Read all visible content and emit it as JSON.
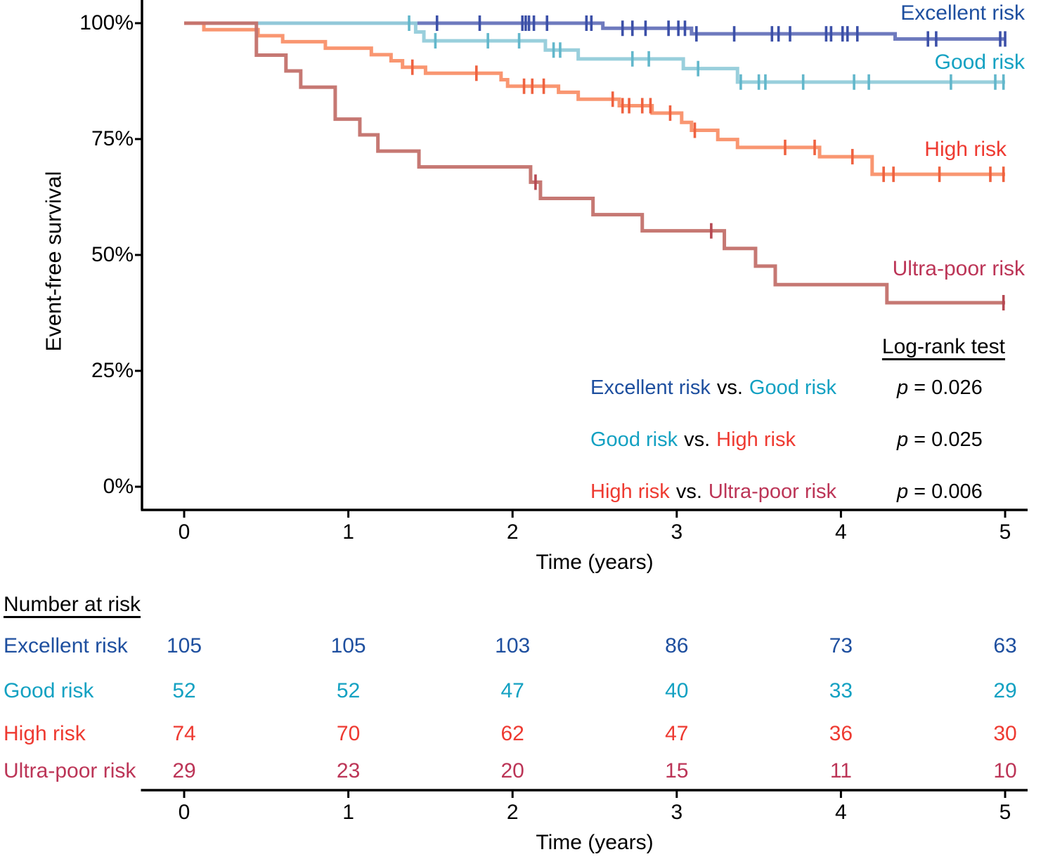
{
  "chart_data": {
    "type": "line",
    "subtype": "kaplan-meier-step-curves",
    "title": "",
    "ylabel": "Event-free survival",
    "xlabel": "Time (years)",
    "xlim": [
      0,
      5
    ],
    "ylim": [
      0,
      100
    ],
    "grid": false,
    "legend_position": "inline-right-of-curves",
    "yticks": [
      {
        "label": "100%",
        "value": 100
      },
      {
        "label": "75%",
        "value": 75
      },
      {
        "label": "50%",
        "value": 50
      },
      {
        "label": "25%",
        "value": 25
      },
      {
        "label": "0%",
        "value": 0
      }
    ],
    "xticks": [
      {
        "label": "0",
        "value": 0
      },
      {
        "label": "1",
        "value": 1
      },
      {
        "label": "2",
        "value": 2
      },
      {
        "label": "3",
        "value": 3
      },
      {
        "label": "4",
        "value": 4
      },
      {
        "label": "5",
        "value": 5
      }
    ],
    "series": [
      {
        "name": "Excellent risk",
        "label_color": "#1e4f9f",
        "curve_color": "#6673ba",
        "tick_color": "#3c50a8",
        "steps": [
          [
            0,
            100
          ],
          [
            2.55,
            98.9
          ],
          [
            3.09,
            97.7
          ],
          [
            4.33,
            96.6
          ],
          [
            5,
            96.6
          ]
        ],
        "censors": [
          [
            1.54,
            100
          ],
          [
            1.8,
            100
          ],
          [
            2.06,
            100
          ],
          [
            2.08,
            100
          ],
          [
            2.1,
            100
          ],
          [
            2.13,
            100
          ],
          [
            2.21,
            100
          ],
          [
            2.45,
            100
          ],
          [
            2.48,
            100
          ],
          [
            2.67,
            98.9
          ],
          [
            2.73,
            98.9
          ],
          [
            2.81,
            98.9
          ],
          [
            2.95,
            98.9
          ],
          [
            3.01,
            98.9
          ],
          [
            3.05,
            98.9
          ],
          [
            3.12,
            97.7
          ],
          [
            3.35,
            97.7
          ],
          [
            3.58,
            97.7
          ],
          [
            3.62,
            97.7
          ],
          [
            3.69,
            97.7
          ],
          [
            3.91,
            97.7
          ],
          [
            3.94,
            97.7
          ],
          [
            4.01,
            97.7
          ],
          [
            4.04,
            97.7
          ],
          [
            4.1,
            97.7
          ],
          [
            4.53,
            96.6
          ],
          [
            4.58,
            96.6
          ],
          [
            4.97,
            96.6
          ],
          [
            5.0,
            96.6
          ]
        ]
      },
      {
        "name": "Good risk",
        "label_color": "#13a1c2",
        "curve_color": "#93ccda",
        "tick_color": "#62b7cb",
        "steps": [
          [
            0,
            100
          ],
          [
            1.41,
            98.1
          ],
          [
            1.46,
            96.2
          ],
          [
            2.2,
            94.2
          ],
          [
            2.4,
            92.3
          ],
          [
            3.04,
            90.2
          ],
          [
            3.37,
            87.3
          ],
          [
            5,
            87.3
          ]
        ],
        "censors": [
          [
            1.37,
            100
          ],
          [
            1.53,
            96.2
          ],
          [
            1.85,
            96.2
          ],
          [
            2.04,
            96.2
          ],
          [
            2.25,
            94.2
          ],
          [
            2.29,
            94.2
          ],
          [
            2.73,
            92.3
          ],
          [
            2.83,
            92.3
          ],
          [
            3.13,
            90.2
          ],
          [
            3.39,
            87.3
          ],
          [
            3.5,
            87.3
          ],
          [
            3.54,
            87.3
          ],
          [
            3.77,
            87.3
          ],
          [
            4.08,
            87.3
          ],
          [
            4.17,
            87.3
          ],
          [
            4.67,
            87.3
          ],
          [
            4.94,
            87.3
          ],
          [
            4.99,
            87.3
          ]
        ]
      },
      {
        "name": "High risk",
        "label_color": "#ee3a31",
        "curve_color": "#f99069",
        "tick_color": "#ef6240",
        "steps": [
          [
            0,
            100
          ],
          [
            0.12,
            98.6
          ],
          [
            0.45,
            97.3
          ],
          [
            0.6,
            96.0
          ],
          [
            0.86,
            94.6
          ],
          [
            1.14,
            93.2
          ],
          [
            1.26,
            91.9
          ],
          [
            1.33,
            90.5
          ],
          [
            1.47,
            89.2
          ],
          [
            1.93,
            87.8
          ],
          [
            1.97,
            86.4
          ],
          [
            2.28,
            85.1
          ],
          [
            2.4,
            83.6
          ],
          [
            2.65,
            82.2
          ],
          [
            2.85,
            80.6
          ],
          [
            3.03,
            78.6
          ],
          [
            3.09,
            76.9
          ],
          [
            3.25,
            74.9
          ],
          [
            3.37,
            73.2
          ],
          [
            3.87,
            71.2
          ],
          [
            4.19,
            67.4
          ],
          [
            5,
            67.4
          ]
        ],
        "censors": [
          [
            1.39,
            90.5
          ],
          [
            1.78,
            89.2
          ],
          [
            2.07,
            86.4
          ],
          [
            2.12,
            86.4
          ],
          [
            2.19,
            86.4
          ],
          [
            2.61,
            83.6
          ],
          [
            2.67,
            82.2
          ],
          [
            2.71,
            82.2
          ],
          [
            2.79,
            82.2
          ],
          [
            2.84,
            82.2
          ],
          [
            2.96,
            80.6
          ],
          [
            3.11,
            76.9
          ],
          [
            3.66,
            73.2
          ],
          [
            3.84,
            73.2
          ],
          [
            4.07,
            71.2
          ],
          [
            4.26,
            67.4
          ],
          [
            4.32,
            67.4
          ],
          [
            4.6,
            67.4
          ],
          [
            4.91,
            67.4
          ],
          [
            4.99,
            67.4
          ]
        ]
      },
      {
        "name": "Ultra-poor risk",
        "label_color": "#bc3557",
        "curve_color": "#c3716b",
        "tick_color": "#b64953",
        "steps": [
          [
            0,
            100
          ],
          [
            0.44,
            93.1
          ],
          [
            0.62,
            89.7
          ],
          [
            0.71,
            86.2
          ],
          [
            0.92,
            79.3
          ],
          [
            1.07,
            75.9
          ],
          [
            1.18,
            72.4
          ],
          [
            1.43,
            69.0
          ],
          [
            2.11,
            65.7
          ],
          [
            2.17,
            62.2
          ],
          [
            2.49,
            58.7
          ],
          [
            2.79,
            55.2
          ],
          [
            3.29,
            51.4
          ],
          [
            3.48,
            47.6
          ],
          [
            3.6,
            43.6
          ],
          [
            4.28,
            39.7
          ],
          [
            5,
            39.7
          ]
        ],
        "censors": [
          [
            2.14,
            65.7
          ],
          [
            3.21,
            55.2
          ],
          [
            4.99,
            39.7
          ]
        ]
      }
    ]
  },
  "log_rank": {
    "title": "Log-rank test",
    "comparisons": [
      {
        "left": "Excellent risk",
        "vs": "vs.",
        "right": "Good risk",
        "p_label": "p",
        "p_value": "= 0.026"
      },
      {
        "left": "Good risk",
        "vs": "vs.",
        "right": "High risk",
        "p_label": "p",
        "p_value": "= 0.025"
      },
      {
        "left": "High risk",
        "vs": "vs.",
        "right": "Ultra-poor risk",
        "p_label": "p",
        "p_value": "= 0.006"
      }
    ]
  },
  "risk_table": {
    "title": "Number at risk",
    "xlabel": "Time (years)",
    "times": [
      0,
      1,
      2,
      3,
      4,
      5
    ],
    "rows": [
      {
        "label": "Excellent risk",
        "values": [
          105,
          105,
          103,
          86,
          73,
          63
        ]
      },
      {
        "label": "Good risk",
        "values": [
          52,
          52,
          47,
          40,
          33,
          29
        ]
      },
      {
        "label": "High risk",
        "values": [
          74,
          70,
          62,
          47,
          36,
          30
        ]
      },
      {
        "label": "Ultra-poor risk",
        "values": [
          29,
          23,
          20,
          15,
          11,
          10
        ]
      }
    ]
  }
}
